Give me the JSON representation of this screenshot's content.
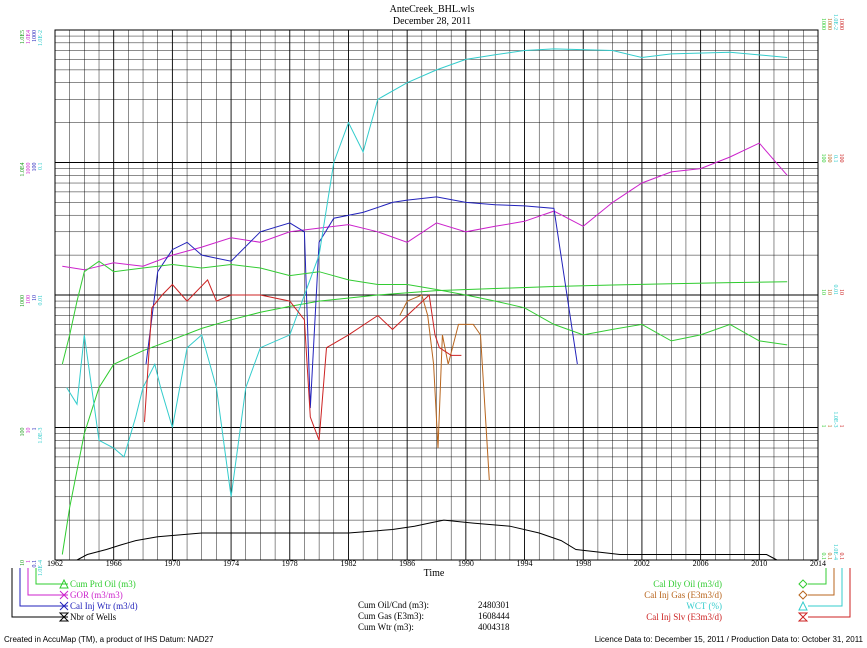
{
  "colors": {
    "cum_oil": "#2ecc2e",
    "gor": "#cc22cc",
    "inj_wtr": "#2222bb",
    "wells": "#000000",
    "dly_oil": "#33cc33",
    "inj_gas": "#b8651d",
    "wct": "#33cccc",
    "inj_slv": "#cc2222"
  },
  "chart_data": {
    "type": "line",
    "title": "AnteCreek_BHL.wls",
    "subtitle": "December 28, 2011",
    "xlabel": "Time",
    "x_ticks": [
      "1962",
      "1966",
      "1970",
      "1974",
      "1978",
      "1982",
      "1986",
      "1990",
      "1994",
      "1998",
      "2002",
      "2006",
      "2010",
      "2014"
    ],
    "xlim": [
      1962,
      2014
    ],
    "yscale": "log",
    "ylim": [
      10,
      100000
    ],
    "left_axis_columns": [
      {
        "color": "#1a9a1a",
        "ticks": [
          "10",
          "100",
          "1000",
          "1.0E4",
          "1.0E5"
        ]
      },
      {
        "color": "#cc22cc",
        "ticks": [
          "1",
          "10",
          "100",
          "1000",
          "1.0E4"
        ]
      },
      {
        "color": "#2222bb",
        "ticks": [
          "0.1",
          "1",
          "10",
          "100",
          "1000"
        ]
      },
      {
        "color": "#33cccc",
        "ticks": [
          "1.0E-4",
          "1.0E-3",
          "0.01",
          "0.1",
          "1.0E-2"
        ]
      }
    ],
    "right_axis_columns": [
      {
        "color": "#33cc33",
        "ticks": [
          "0.1",
          "1",
          "10",
          "100",
          "1000"
        ]
      },
      {
        "color": "#b8651d",
        "ticks": [
          "0.1",
          "1",
          "10",
          "100",
          "1000"
        ]
      },
      {
        "color": "#33cccc",
        "ticks": [
          "1.0E-4",
          "1.0E-3",
          "0.01",
          "0.1",
          "1.0E-2"
        ]
      },
      {
        "color": "#cc2222",
        "ticks": [
          "0.1",
          "1",
          "10",
          "100",
          "1000"
        ]
      }
    ],
    "series": [
      {
        "name": "Cum Prd Oil (m3)",
        "color": "#2ecc2e",
        "points": [
          [
            1962.5,
            11
          ],
          [
            1963,
            25
          ],
          [
            1964,
            90
          ],
          [
            1965,
            200
          ],
          [
            1966,
            300
          ],
          [
            1968,
            380
          ],
          [
            1970,
            460
          ],
          [
            1972,
            560
          ],
          [
            1974,
            650
          ],
          [
            1976,
            740
          ],
          [
            1978,
            820
          ],
          [
            1980,
            900
          ],
          [
            1984,
            1000
          ],
          [
            1988,
            1080
          ],
          [
            1992,
            1120
          ],
          [
            1996,
            1160
          ],
          [
            2000,
            1190
          ],
          [
            2004,
            1215
          ],
          [
            2008,
            1240
          ],
          [
            2011.9,
            1260
          ]
        ]
      },
      {
        "name": "GOR (m3/m3)",
        "color": "#cc22cc",
        "points": [
          [
            1962.5,
            1650
          ],
          [
            1964,
            1550
          ],
          [
            1966,
            1750
          ],
          [
            1968,
            1650
          ],
          [
            1970,
            2000
          ],
          [
            1972,
            2300
          ],
          [
            1974,
            2700
          ],
          [
            1976,
            2500
          ],
          [
            1978,
            3000
          ],
          [
            1980,
            3200
          ],
          [
            1982,
            3400
          ],
          [
            1984,
            3000
          ],
          [
            1986,
            2500
          ],
          [
            1988,
            3500
          ],
          [
            1990,
            3000
          ],
          [
            1992,
            3300
          ],
          [
            1994,
            3600
          ],
          [
            1996,
            4300
          ],
          [
            1998,
            3300
          ],
          [
            2000,
            5000
          ],
          [
            2002,
            7000
          ],
          [
            2004,
            8500
          ],
          [
            2006,
            9000
          ],
          [
            2008,
            11000
          ],
          [
            2010,
            14000
          ],
          [
            2011.9,
            8000
          ]
        ]
      },
      {
        "name": "Cal Inj Wtr (m3/d)",
        "color": "#2222bb",
        "points": [
          [
            1968.2,
            300
          ],
          [
            1969,
            1500
          ],
          [
            1970,
            2200
          ],
          [
            1971,
            2500
          ],
          [
            1972,
            2000
          ],
          [
            1974,
            1800
          ],
          [
            1976,
            3000
          ],
          [
            1978,
            3500
          ],
          [
            1979,
            3000
          ],
          [
            1979.4,
            140
          ],
          [
            1980,
            2500
          ],
          [
            1981,
            3800
          ],
          [
            1983,
            4200
          ],
          [
            1985,
            5000
          ],
          [
            1986,
            5200
          ],
          [
            1988,
            5500
          ],
          [
            1990,
            5000
          ],
          [
            1992,
            4800
          ],
          [
            1994,
            4700
          ],
          [
            1996,
            4500
          ],
          [
            1997.6,
            300
          ]
        ]
      },
      {
        "name": "Nbr of Wells",
        "color": "#000000",
        "points": [
          [
            1963.5,
            10
          ],
          [
            1964.2,
            11
          ],
          [
            1965.5,
            12
          ],
          [
            1966.5,
            13
          ],
          [
            1967.5,
            14
          ],
          [
            1969,
            15
          ],
          [
            1972,
            16
          ],
          [
            1978,
            16
          ],
          [
            1982,
            16
          ],
          [
            1985,
            17
          ],
          [
            1986.5,
            18
          ],
          [
            1987.5,
            19
          ],
          [
            1988.5,
            20
          ],
          [
            1990.5,
            19
          ],
          [
            1993,
            18
          ],
          [
            1995,
            16
          ],
          [
            1996.5,
            14
          ],
          [
            1997.5,
            12
          ],
          [
            2000.5,
            11
          ],
          [
            2002,
            11
          ],
          [
            2004,
            11
          ],
          [
            2008,
            11
          ],
          [
            2010.5,
            11
          ],
          [
            2011.2,
            10
          ]
        ]
      },
      {
        "name": "Cal Dly Oil (m3/d)",
        "color": "#33cc33",
        "points": [
          [
            1962.5,
            300
          ],
          [
            1963,
            500
          ],
          [
            1963.5,
            900
          ],
          [
            1964,
            1500
          ],
          [
            1965,
            1800
          ],
          [
            1966,
            1500
          ],
          [
            1968,
            1600
          ],
          [
            1970,
            1700
          ],
          [
            1972,
            1600
          ],
          [
            1974,
            1700
          ],
          [
            1976,
            1600
          ],
          [
            1978,
            1400
          ],
          [
            1980,
            1500
          ],
          [
            1982,
            1300
          ],
          [
            1984,
            1200
          ],
          [
            1986,
            1200
          ],
          [
            1988,
            1100
          ],
          [
            1990,
            1000
          ],
          [
            1992,
            900
          ],
          [
            1994,
            800
          ],
          [
            1996,
            600
          ],
          [
            1998,
            500
          ],
          [
            2000,
            550
          ],
          [
            2002,
            600
          ],
          [
            2004,
            450
          ],
          [
            2006,
            500
          ],
          [
            2008,
            600
          ],
          [
            2010,
            450
          ],
          [
            2011.9,
            420
          ]
        ]
      },
      {
        "name": "Cal Inj Gas (E3m3/d)",
        "color": "#b8651d",
        "points": [
          [
            1985.5,
            700
          ],
          [
            1986,
            900
          ],
          [
            1987,
            1000
          ],
          [
            1987.4,
            700
          ],
          [
            1987.8,
            300
          ],
          [
            1988.1,
            70
          ],
          [
            1988.4,
            500
          ],
          [
            1988.8,
            300
          ],
          [
            1989.5,
            600
          ],
          [
            1990,
            600
          ],
          [
            1990.5,
            600
          ],
          [
            1991,
            500
          ],
          [
            1991.6,
            40
          ]
        ]
      },
      {
        "name": "WCT (%)",
        "color": "#33cccc",
        "points": [
          [
            1962.8,
            200
          ],
          [
            1963.5,
            150
          ],
          [
            1964,
            500
          ],
          [
            1965,
            80
          ],
          [
            1966,
            70
          ],
          [
            1966.7,
            60
          ],
          [
            1967.5,
            120
          ],
          [
            1968,
            200
          ],
          [
            1968.8,
            300
          ],
          [
            1969.2,
            200
          ],
          [
            1970,
            100
          ],
          [
            1971,
            400
          ],
          [
            1972,
            500
          ],
          [
            1973,
            200
          ],
          [
            1974,
            30
          ],
          [
            1975,
            200
          ],
          [
            1976,
            400
          ],
          [
            1978,
            500
          ],
          [
            1980,
            2000
          ],
          [
            1981,
            10000
          ],
          [
            1982,
            20000
          ],
          [
            1983,
            12000
          ],
          [
            1984,
            30000
          ],
          [
            1986,
            40000
          ],
          [
            1988,
            50000
          ],
          [
            1990,
            60000
          ],
          [
            1992,
            65000
          ],
          [
            1994,
            70000
          ],
          [
            1996,
            72000
          ],
          [
            2000,
            70000
          ],
          [
            2002,
            62000
          ],
          [
            2004,
            66000
          ],
          [
            2008,
            68000
          ],
          [
            2011.9,
            62000
          ]
        ]
      },
      {
        "name": "Cal Inj Slv (E3m3/d)",
        "color": "#cc2222",
        "points": [
          [
            1968.1,
            110
          ],
          [
            1968.6,
            800
          ],
          [
            1969.3,
            1000
          ],
          [
            1970,
            1200
          ],
          [
            1971,
            900
          ],
          [
            1972.4,
            1300
          ],
          [
            1973,
            900
          ],
          [
            1974,
            1000
          ],
          [
            1976,
            1000
          ],
          [
            1978,
            900
          ],
          [
            1979,
            650
          ],
          [
            1979.4,
            120
          ],
          [
            1980,
            80
          ],
          [
            1980.5,
            400
          ],
          [
            1982,
            500
          ],
          [
            1984,
            700
          ],
          [
            1985,
            550
          ],
          [
            1986,
            700
          ],
          [
            1987.5,
            1000
          ],
          [
            1987.9,
            500
          ],
          [
            1988.2,
            400
          ],
          [
            1989,
            350
          ],
          [
            1989.7,
            350
          ]
        ]
      }
    ]
  },
  "legend_left": [
    {
      "label": "Cum Prd Oil (m3)",
      "color": "#2ecc2e",
      "marker": "triangle"
    },
    {
      "label": "GOR (m3/m3)",
      "color": "#cc22cc",
      "marker": "x"
    },
    {
      "label": "Cal Inj Wtr (m3/d)",
      "color": "#2222bb",
      "marker": "x"
    },
    {
      "label": "Nbr of Wells",
      "color": "#000000",
      "marker": "hourglass"
    }
  ],
  "legend_right": [
    {
      "label": "Cal Dly Oil (m3/d)",
      "color": "#33cc33",
      "marker": "diamond"
    },
    {
      "label": "Cal Inj Gas (E3m3/d)",
      "color": "#b8651d",
      "marker": "diamond"
    },
    {
      "label": "WCT (%)",
      "color": "#33cccc",
      "marker": "triangle"
    },
    {
      "label": "Cal Inj Slv (E3m3/d)",
      "color": "#cc2222",
      "marker": "hourglass"
    }
  ],
  "stats": [
    {
      "label": "Cum Oil/Cnd (m3):",
      "value": "2480301"
    },
    {
      "label": "Cum Gas (E3m3):",
      "value": "1608444"
    },
    {
      "label": "Cum Wtr (m3):",
      "value": "4004318"
    }
  ],
  "footer_left": "Created in AccuMap (TM), a product of IHS Datum: NAD27",
  "footer_right": "Licence Data to: December 15, 2011 / Production Data to: October 31, 2011"
}
